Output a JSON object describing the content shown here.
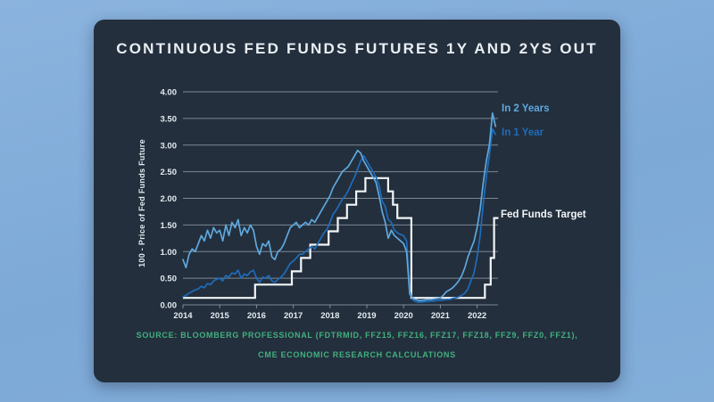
{
  "card": {
    "title": "CONTINUOUS FED FUNDS FUTURES 1Y AND 2YS OUT",
    "background": "#232f3d"
  },
  "page_background": "#7da9d7",
  "source": {
    "line1": "SOURCE: BLOOMBERG PROFESSIONAL (FDTRMID, FFZ15, FFZ16, FFZ17, FFZ18, FFZ9, FFZ0, FFZ1),",
    "line2": "CME ECONOMIC RESEARCH CALCULATIONS",
    "color": "#42b07e"
  },
  "chart_data": {
    "type": "line",
    "title": "CONTINUOUS FED FUNDS FUTURES 1Y AND 2YS OUT",
    "xlabel": "",
    "ylabel": "100 - Price of Fed Funds Future",
    "x_range": [
      2014,
      2022.58
    ],
    "y_range": [
      0,
      4
    ],
    "y_ticks": [
      0,
      0.5,
      1,
      1.5,
      2,
      2.5,
      3,
      3.5,
      4
    ],
    "x_ticks": [
      2014,
      2015,
      2016,
      2017,
      2018,
      2019,
      2020,
      2021,
      2022
    ],
    "grid": true,
    "grid_color": "rgba(214,224,232,0.5)",
    "legend_position": "right-inline",
    "series": [
      {
        "name": "In 2 Years",
        "color": "#5ea8de",
        "x_start": 2014.0,
        "x_step": 0.08333,
        "values": [
          0.85,
          0.7,
          0.95,
          1.05,
          1.0,
          1.15,
          1.3,
          1.2,
          1.4,
          1.25,
          1.45,
          1.35,
          1.4,
          1.2,
          1.5,
          1.3,
          1.55,
          1.45,
          1.6,
          1.3,
          1.45,
          1.35,
          1.5,
          1.4,
          1.1,
          0.95,
          1.15,
          1.1,
          1.2,
          0.9,
          0.85,
          1.0,
          1.05,
          1.15,
          1.3,
          1.45,
          1.5,
          1.55,
          1.45,
          1.5,
          1.55,
          1.5,
          1.6,
          1.55,
          1.65,
          1.75,
          1.85,
          1.95,
          2.05,
          2.2,
          2.3,
          2.4,
          2.5,
          2.55,
          2.6,
          2.7,
          2.8,
          2.9,
          2.85,
          2.7,
          2.6,
          2.5,
          2.4,
          2.3,
          2.05,
          1.75,
          1.55,
          1.25,
          1.4,
          1.3,
          1.25,
          1.2,
          1.15,
          1.0,
          0.2,
          0.12,
          0.1,
          0.08,
          0.08,
          0.09,
          0.1,
          0.1,
          0.11,
          0.12,
          0.13,
          0.18,
          0.25,
          0.28,
          0.32,
          0.38,
          0.45,
          0.55,
          0.7,
          0.9,
          1.05,
          1.2,
          1.45,
          1.8,
          2.3,
          2.7,
          3.0,
          3.6,
          3.35
        ]
      },
      {
        "name": "In 1 Year",
        "color": "#1f6cba",
        "x_start": 2014.0,
        "x_step": 0.08333,
        "values": [
          0.15,
          0.18,
          0.22,
          0.25,
          0.28,
          0.3,
          0.35,
          0.32,
          0.4,
          0.38,
          0.45,
          0.48,
          0.5,
          0.45,
          0.55,
          0.52,
          0.6,
          0.58,
          0.65,
          0.5,
          0.58,
          0.55,
          0.62,
          0.65,
          0.5,
          0.42,
          0.52,
          0.5,
          0.55,
          0.45,
          0.42,
          0.48,
          0.52,
          0.58,
          0.68,
          0.78,
          0.82,
          0.88,
          0.95,
          0.95,
          1.0,
          1.05,
          1.1,
          1.05,
          1.15,
          1.25,
          1.35,
          1.42,
          1.55,
          1.7,
          1.78,
          1.88,
          1.98,
          2.05,
          2.15,
          2.28,
          2.4,
          2.55,
          2.7,
          2.8,
          2.7,
          2.6,
          2.5,
          2.4,
          2.25,
          1.95,
          1.85,
          1.6,
          1.55,
          1.4,
          1.35,
          1.32,
          1.3,
          1.2,
          0.25,
          0.1,
          0.06,
          0.05,
          0.05,
          0.06,
          0.06,
          0.07,
          0.07,
          0.08,
          0.08,
          0.09,
          0.1,
          0.1,
          0.12,
          0.13,
          0.15,
          0.18,
          0.22,
          0.3,
          0.45,
          0.6,
          0.9,
          1.3,
          1.9,
          2.4,
          2.8,
          3.3,
          3.2
        ]
      },
      {
        "name": "Fed Funds Target",
        "color": "#f2f5f7",
        "type": "step",
        "points": [
          [
            2014.0,
            0.13
          ],
          [
            2015.96,
            0.38
          ],
          [
            2016.96,
            0.63
          ],
          [
            2017.21,
            0.88
          ],
          [
            2017.46,
            1.13
          ],
          [
            2017.96,
            1.38
          ],
          [
            2018.21,
            1.63
          ],
          [
            2018.46,
            1.88
          ],
          [
            2018.71,
            2.13
          ],
          [
            2018.96,
            2.38
          ],
          [
            2019.58,
            2.13
          ],
          [
            2019.71,
            1.88
          ],
          [
            2019.83,
            1.63
          ],
          [
            2020.21,
            0.13
          ],
          [
            2022.21,
            0.38
          ],
          [
            2022.37,
            0.88
          ],
          [
            2022.46,
            1.63
          ],
          [
            2022.58,
            1.63
          ]
        ]
      }
    ]
  }
}
